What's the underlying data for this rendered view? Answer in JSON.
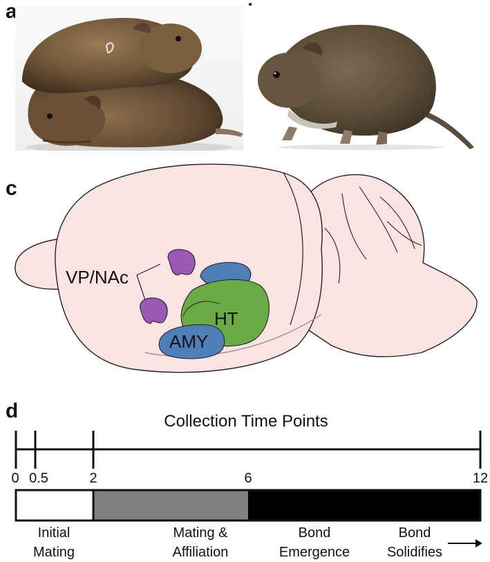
{
  "panels": {
    "a": "a",
    "b": "b",
    "c": "c",
    "d": "d"
  },
  "brain": {
    "regions": {
      "vp_nac": "VP/NAc",
      "ht": "HT",
      "amy": "AMY"
    },
    "colors": {
      "brain_fill": "#f9e3e3",
      "vp_nac": "#9b59b6",
      "ht": "#6aab45",
      "amy_and_upper": "#4f7eb8"
    }
  },
  "timeline": {
    "title": "Collection Time Points",
    "ticks": [
      {
        "label": "0",
        "value": 0
      },
      {
        "label": "0.5",
        "value": 0.5
      },
      {
        "label": "2",
        "value": 2
      },
      {
        "label": "6",
        "value": 6
      },
      {
        "label": "12",
        "value": 12
      }
    ],
    "marked_ticks": [
      0,
      0.5,
      2,
      12
    ],
    "segments": [
      {
        "start": 0,
        "end": 2,
        "color": "#ffffff"
      },
      {
        "start": 2,
        "end": 6,
        "color": "#808080"
      },
      {
        "start": 6,
        "end": 12,
        "color": "#000000"
      }
    ],
    "phases": [
      {
        "line1": "Initial",
        "line2": "Mating"
      },
      {
        "line1": "Mating &",
        "line2": "Affiliation"
      },
      {
        "line1": "Bond",
        "line2": "Emergence"
      },
      {
        "line1": "Bond",
        "line2": "Solidifies"
      }
    ]
  }
}
